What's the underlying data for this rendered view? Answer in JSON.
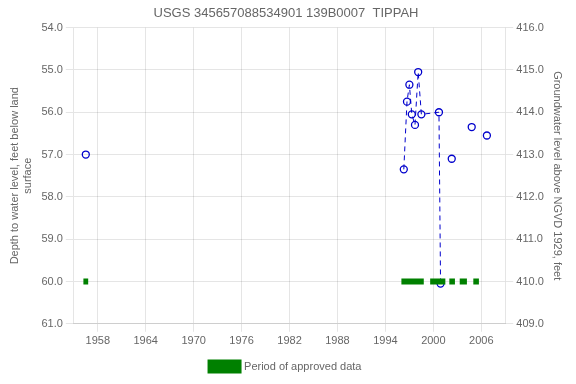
{
  "chart_data": {
    "type": "line",
    "title": "USGS 345657088534901 139B0007  TIPPAH",
    "ylabel": "Depth to water level, feet below land\nsurface",
    "y2label": "Groundwater level above NGVD 1929, feet",
    "xlim": [
      1955,
      2009
    ],
    "xticks": [
      1958,
      1964,
      1970,
      1976,
      1982,
      1988,
      1994,
      2000,
      2006
    ],
    "ylim": [
      61.0,
      54.0
    ],
    "yticks": [
      {
        "value": 54.0,
        "label": "54.0"
      },
      {
        "value": 55.0,
        "label": "55.0"
      },
      {
        "value": 56.0,
        "label": "56.0"
      },
      {
        "value": 57.0,
        "label": "57.0"
      },
      {
        "value": 58.0,
        "label": "58.0"
      },
      {
        "value": 59.0,
        "label": "59.0"
      },
      {
        "value": 60.0,
        "label": "60.0"
      },
      {
        "value": 61.0,
        "label": "61.0"
      }
    ],
    "y2lim": [
      409.0,
      416.0
    ],
    "y2ticks": [
      {
        "value": 409.0,
        "label": "409.0"
      },
      {
        "value": 410.0,
        "label": "410.0"
      },
      {
        "value": 411.0,
        "label": "411.0"
      },
      {
        "value": 412.0,
        "label": "412.0"
      },
      {
        "value": 413.0,
        "label": "413.0"
      },
      {
        "value": 414.0,
        "label": "414.0"
      },
      {
        "value": 415.0,
        "label": "415.0"
      },
      {
        "value": 416.0,
        "label": "416.0"
      }
    ],
    "grid": true,
    "legend": "bottom",
    "series": [
      {
        "type": "scatter",
        "color": "#0000cc",
        "marker": "circle",
        "x": [
          1956.5
        ],
        "values": [
          57.0
        ]
      },
      {
        "type": "line",
        "color": "#0000cc",
        "marker": "circle",
        "line_style": "dashed",
        "x": [
          1996.3,
          1996.7,
          1997.0,
          1997.3,
          1997.7,
          1998.1,
          1998.5,
          2000.7,
          2000.9
        ],
        "values": [
          57.35,
          55.75,
          55.35,
          56.05,
          56.3,
          55.05,
          56.05,
          56.0,
          60.05
        ]
      },
      {
        "type": "scatter",
        "color": "#0000cc",
        "marker": "circle",
        "x": [
          2002.3,
          2004.8,
          2006.7
        ],
        "values": [
          57.1,
          56.35,
          56.55
        ]
      },
      {
        "name": "Period of approved data",
        "type": "range",
        "color": "#008000",
        "y": 60.0,
        "segments": [
          [
            1956.2,
            1956.8
          ],
          [
            1996.0,
            1998.8
          ],
          [
            1999.6,
            2001.5
          ],
          [
            2002.0,
            2002.7
          ],
          [
            2003.3,
            2004.2
          ],
          [
            2005.0,
            2005.7
          ]
        ]
      }
    ]
  }
}
